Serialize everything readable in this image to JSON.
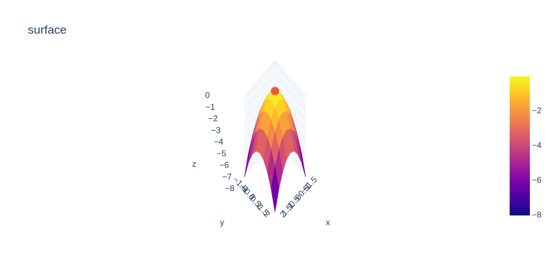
{
  "chart_data": {
    "type": "surface",
    "title": "surface",
    "x_label": "x",
    "y_label": "y",
    "z_label": "z",
    "x": [
      -2,
      -1.5,
      -1,
      -0.5,
      0,
      0.5,
      1,
      1.5,
      2
    ],
    "y": [
      -2,
      -1.5,
      -1,
      -0.5,
      0,
      0.5,
      1,
      1.5,
      2
    ],
    "z": [
      [
        -8,
        -6.25,
        -5,
        -4.25,
        -4,
        -4.25,
        -5,
        -6.25,
        -8
      ],
      [
        -6.25,
        -4.5,
        -3.25,
        -2.5,
        -2.25,
        -2.5,
        -3.25,
        -4.5,
        -6.25
      ],
      [
        -5,
        -3.25,
        -2,
        -1.25,
        -1,
        -1.25,
        -2,
        -3.25,
        -5
      ],
      [
        -4.25,
        -2.5,
        -1.25,
        -0.5,
        -0.25,
        -0.5,
        -1.25,
        -2.5,
        -4.25
      ],
      [
        -4,
        -2.25,
        -1,
        -0.25,
        0,
        -0.25,
        -1,
        -2.25,
        -4
      ],
      [
        -4.25,
        -2.5,
        -1.25,
        -0.5,
        -0.25,
        -0.5,
        -1.25,
        -2.5,
        -4.25
      ],
      [
        -5,
        -3.25,
        -2,
        -1.25,
        -1,
        -1.25,
        -2,
        -3.25,
        -5
      ],
      [
        -6.25,
        -4.5,
        -3.25,
        -2.5,
        -2.25,
        -2.5,
        -3.25,
        -4.5,
        -6.25
      ],
      [
        -8,
        -6.25,
        -5,
        -4.25,
        -4,
        -4.25,
        -5,
        -6.25,
        -8
      ]
    ],
    "marker": {
      "x": 0,
      "y": 0,
      "z": 0,
      "color": "#ef553b"
    },
    "colorscale": [
      "#0d0887",
      "#46039f",
      "#7201a8",
      "#9c179e",
      "#bd3786",
      "#d8576b",
      "#ed7953",
      "#fb9f3a",
      "#fdca26",
      "#f0f921"
    ],
    "zlim": [
      -8,
      0
    ],
    "zticks": [
      0,
      {
        "value": -1,
        "label": "−1"
      },
      {
        "value": -2,
        "label": "−2"
      },
      {
        "value": -3,
        "label": "−3"
      },
      {
        "value": -4,
        "label": "−4"
      },
      {
        "value": -5,
        "label": "−5"
      },
      {
        "value": -6,
        "label": "−6"
      },
      {
        "value": -7,
        "label": "−7"
      },
      {
        "value": -8,
        "label": "−8"
      }
    ],
    "xticks": [
      {
        "value": -1.5,
        "label": "−1.5"
      },
      {
        "value": -1,
        "label": "−1"
      },
      {
        "value": -0.5,
        "label": "−0.5"
      },
      0,
      0.5,
      1,
      1.5,
      2
    ],
    "yticks": [
      {
        "value": -1.5,
        "label": "−1.5"
      },
      {
        "value": -1,
        "label": "−1"
      },
      {
        "value": -0.5,
        "label": "−0.5"
      },
      0,
      0.5,
      1,
      1.5,
      2
    ],
    "clim": [
      -8,
      0
    ],
    "cticks": [
      {
        "value": -2,
        "label": "−2"
      },
      {
        "value": -4,
        "label": "−4"
      },
      {
        "value": -6,
        "label": "−6"
      },
      {
        "value": -8,
        "label": "−8"
      }
    ]
  }
}
